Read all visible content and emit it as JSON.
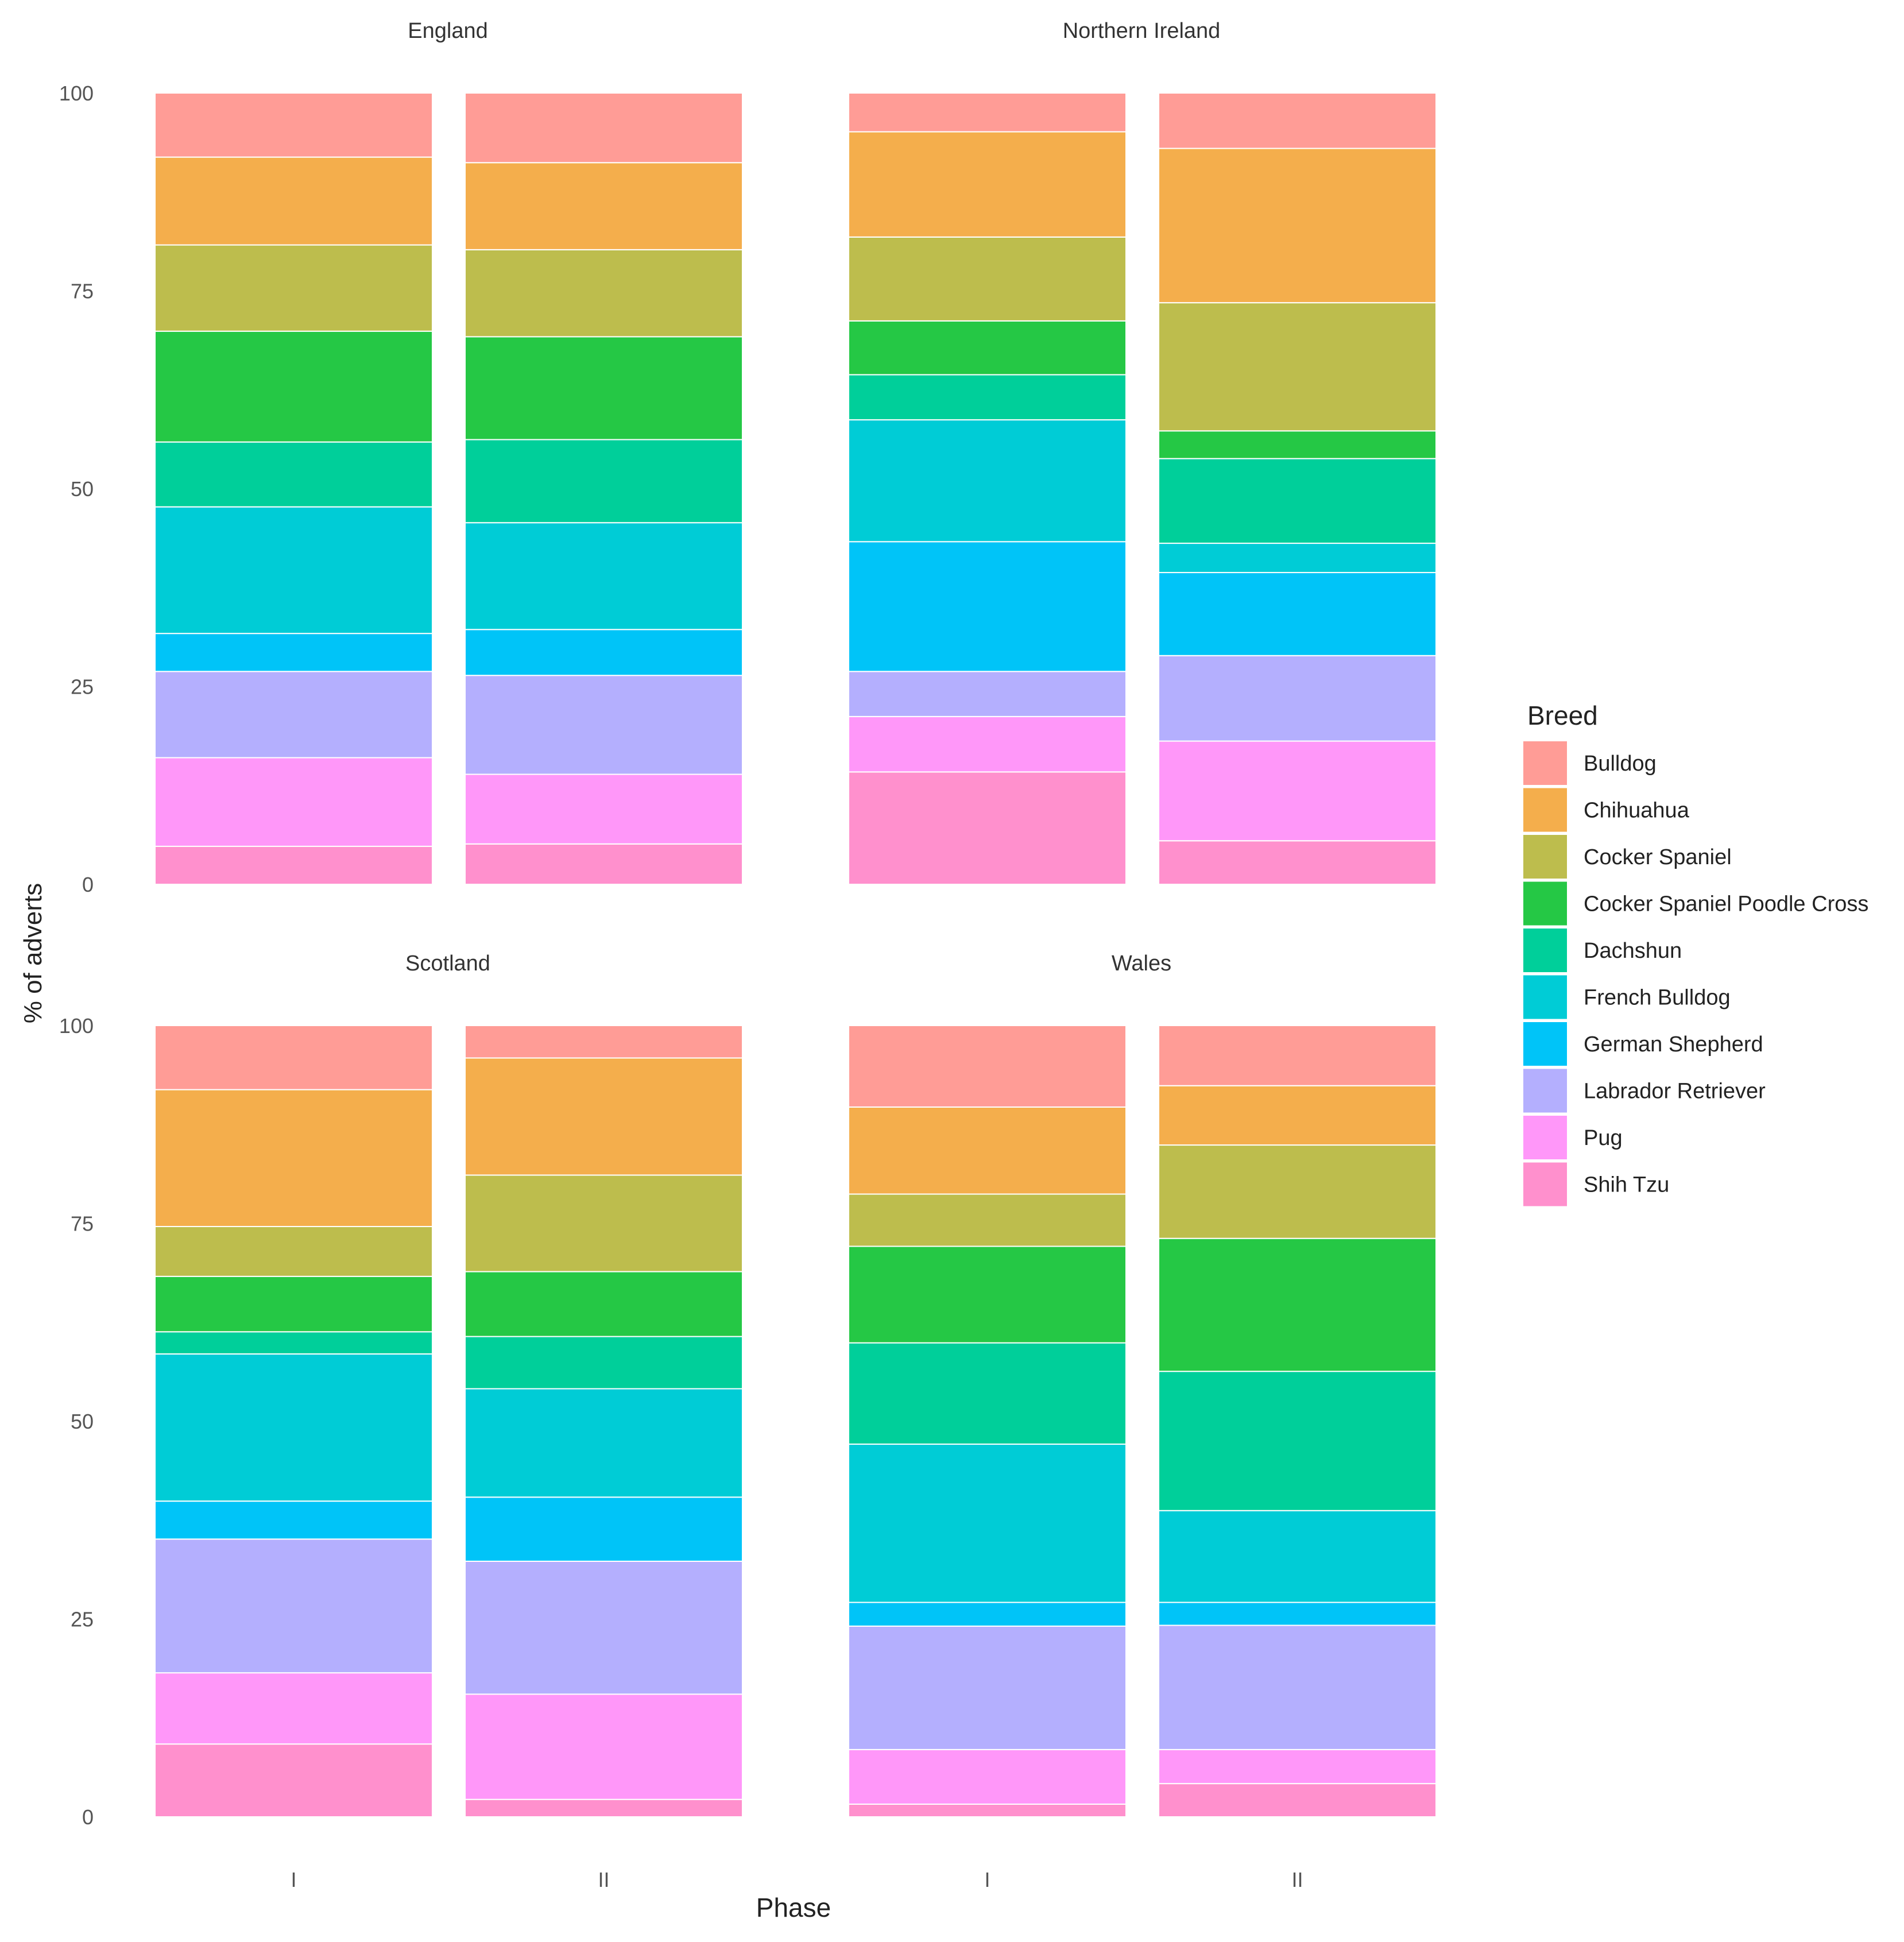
{
  "chart_data": {
    "type": "bar",
    "stacked": true,
    "faceted": true,
    "ylabel": "% of adverts",
    "xlabel": "Phase",
    "ylim": [
      0,
      100
    ],
    "yticks": [
      0,
      25,
      50,
      75,
      100
    ],
    "categories": [
      "I",
      "II"
    ],
    "legend_title": "Breed",
    "legend_position": "right",
    "breeds": [
      "Bulldog",
      "Chihuahua",
      "Cocker Spaniel",
      "Cocker Spaniel Poodle Cross",
      "Dachshun",
      "French Bulldog",
      "German Shepherd",
      "Labrador Retriever",
      "Pug",
      "Shih Tzu"
    ],
    "colors": [
      "#FF9C96",
      "#F4AE4C",
      "#BDBD4D",
      "#25C845",
      "#00CF9A",
      "#00CCD6",
      "#00C4F8",
      "#B4AFFE",
      "#FF97F9",
      "#FF90CD"
    ],
    "panels": [
      {
        "title": "England",
        "bars": [
          {
            "phase": "I",
            "values": [
              8.1,
              11.1,
              10.9,
              14.0,
              8.2,
              16.0,
              4.8,
              10.9,
              11.2,
              4.8
            ]
          },
          {
            "phase": "II",
            "values": [
              8.8,
              11.0,
              11.0,
              13.0,
              10.5,
              13.5,
              5.8,
              12.5,
              8.8,
              5.1
            ]
          }
        ]
      },
      {
        "title": "Northern Ireland",
        "bars": [
          {
            "phase": "I",
            "values": [
              4.9,
              13.3,
              10.6,
              6.8,
              5.7,
              15.4,
              16.4,
              5.7,
              7.0,
              14.2
            ]
          },
          {
            "phase": "II",
            "values": [
              7.0,
              19.5,
              16.2,
              3.5,
              10.7,
              3.7,
              10.5,
              10.8,
              12.6,
              5.5
            ]
          }
        ]
      },
      {
        "title": "Scotland",
        "bars": [
          {
            "phase": "I",
            "values": [
              8.1,
              17.3,
              6.3,
              7.0,
              2.8,
              18.6,
              4.8,
              16.9,
              9.0,
              9.2
            ]
          },
          {
            "phase": "II",
            "values": [
              4.1,
              14.8,
              12.2,
              8.2,
              6.6,
              13.7,
              8.1,
              16.8,
              13.3,
              2.2
            ]
          }
        ]
      },
      {
        "title": "Wales",
        "bars": [
          {
            "phase": "I",
            "values": [
              10.3,
              11.0,
              6.6,
              12.2,
              12.8,
              20.0,
              3.0,
              15.6,
              6.9,
              1.6
            ]
          },
          {
            "phase": "II",
            "values": [
              7.6,
              7.5,
              11.8,
              16.8,
              17.6,
              11.6,
              2.9,
              15.7,
              4.3,
              4.2
            ]
          }
        ]
      }
    ]
  }
}
